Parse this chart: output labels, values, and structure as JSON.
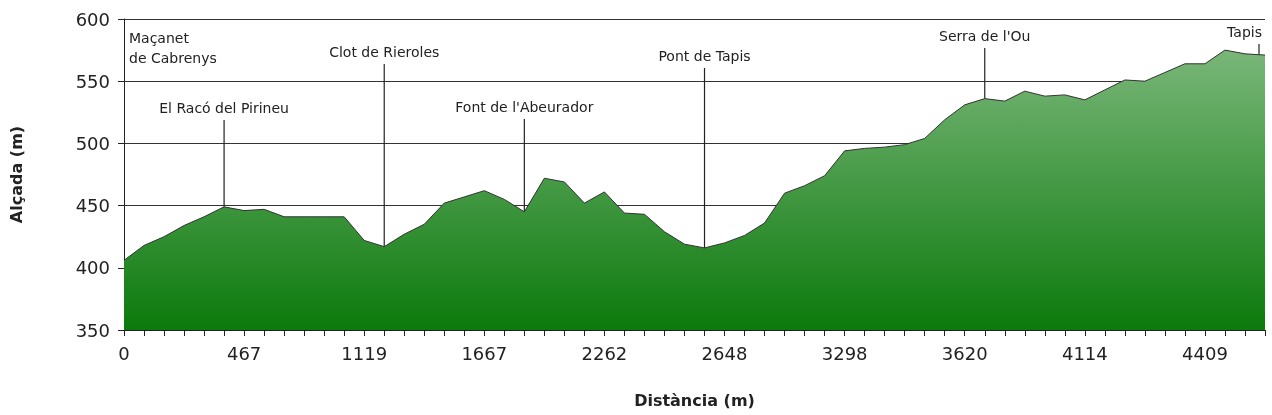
{
  "chart_data": {
    "type": "area",
    "xlabel": "Distància (m)",
    "ylabel": "Alçada (m)",
    "categories": [
      "0",
      null,
      null,
      null,
      null,
      null,
      "467",
      null,
      null,
      null,
      null,
      null,
      "1119",
      null,
      null,
      null,
      null,
      null,
      "1667",
      null,
      null,
      null,
      null,
      null,
      "2262",
      null,
      null,
      null,
      null,
      null,
      "2648",
      null,
      null,
      null,
      null,
      null,
      "3298",
      null,
      null,
      null,
      null,
      null,
      "3620",
      null,
      null,
      null,
      null,
      null,
      "4114",
      null,
      null,
      null,
      null,
      null,
      "4409",
      null,
      null,
      null
    ],
    "series": [
      {
        "color": "#0c7a0c",
        "values": [
          406,
          418,
          425,
          434,
          441,
          449,
          446,
          447,
          441,
          441,
          441,
          441,
          422,
          417,
          427,
          435,
          452,
          457,
          462,
          455,
          445,
          472,
          469,
          452,
          461,
          444,
          443,
          429,
          419,
          416,
          420,
          426,
          436,
          460,
          466,
          474,
          494,
          496,
          497,
          499,
          504,
          519,
          531,
          536,
          534,
          542,
          538,
          539,
          535,
          543,
          551,
          550,
          557,
          564,
          564,
          575,
          572,
          571
        ]
      }
    ],
    "ylim": [
      350,
      600
    ],
    "yticks": [
      350,
      400,
      450,
      500,
      550,
      600
    ],
    "grid": "y",
    "annotations": [
      "Maçanet de Cabrenys",
      {
        "text": "El Racó del Pirineu",
        "y": 449
      },
      {
        "text": "Clot de Rieroles",
        "y": 417
      },
      {
        "text": "Font de l'Abeurador",
        "y": 445
      },
      {
        "text": "Pont de Tapis",
        "y": 416
      },
      {
        "text": "Serra de l'Ou",
        "y": 536
      },
      {
        "text": "Tapis",
        "y": 571
      }
    ]
  }
}
